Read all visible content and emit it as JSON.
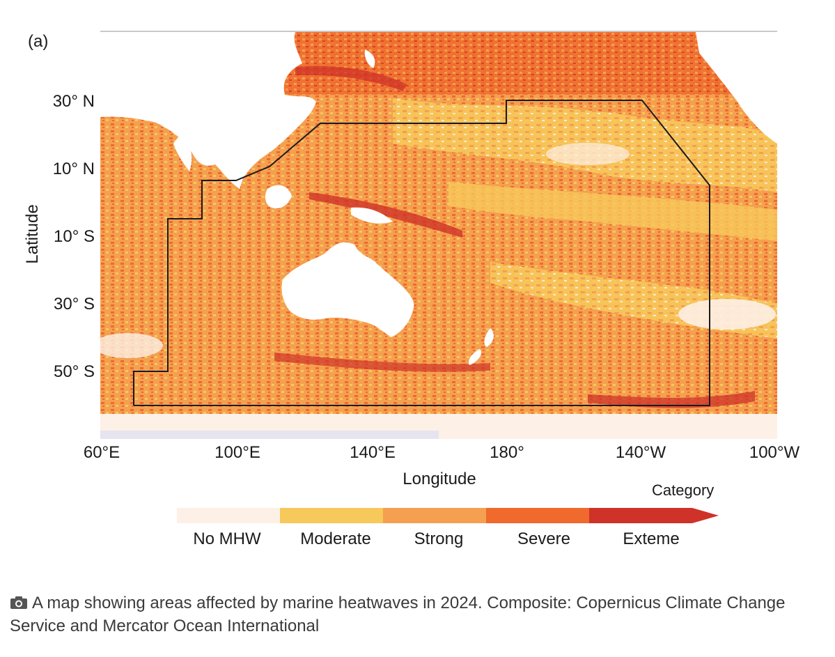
{
  "figure": {
    "panel_label": "(a)",
    "latitude_ticks": [
      "30° N",
      "10° N",
      "10° S",
      "30° S",
      "50° S"
    ],
    "longitude_ticks": [
      "60°E",
      "100°E",
      "140°E",
      "180°",
      "140°W",
      "100°W"
    ],
    "y_axis_title": "Latitude",
    "x_axis_title": "Longitude"
  },
  "legend": {
    "title": "Category",
    "categories": [
      {
        "label": "No MHW",
        "color": "#fdf0e6"
      },
      {
        "label": "Moderate",
        "color": "#f7c85a"
      },
      {
        "label": "Strong",
        "color": "#f4a050"
      },
      {
        "label": "Severe",
        "color": "#ef6a2c"
      },
      {
        "label": "Exteme",
        "color": "#cf3228"
      }
    ]
  },
  "caption": {
    "icon": "camera-icon",
    "text": "A map showing areas affected by marine heatwaves in 2024. Composite: Copernicus Climate Change Service and Mercator Ocean International"
  }
}
